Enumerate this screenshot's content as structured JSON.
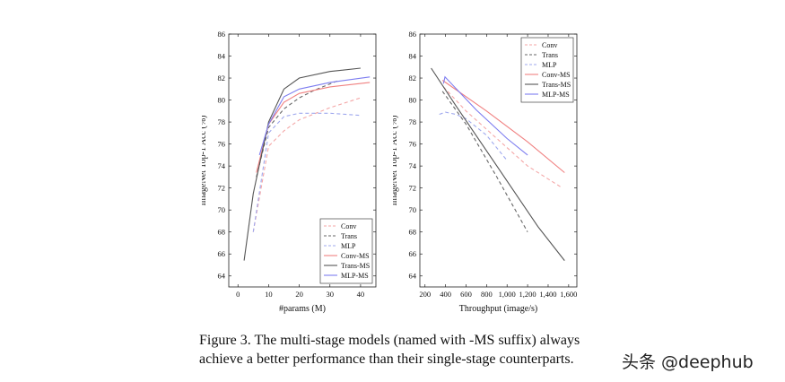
{
  "figure": {
    "caption_line1": "Figure 3. The multi-stage models (named with -MS suffix) always",
    "caption_line2": "achieve a better performance than their single-stage counterparts.",
    "watermark": "头条 @deephub"
  },
  "chart_data": [
    {
      "type": "line",
      "xlabel": "#params (M)",
      "ylabel": "ImageNet Top-1 Acc (%)",
      "xlim": [
        -3,
        45
      ],
      "ylim": [
        63,
        86
      ],
      "xticks": [
        0,
        10,
        20,
        30,
        40
      ],
      "xtick_labels": [
        "0",
        "10",
        "20",
        "30",
        "40"
      ],
      "yticks": [
        64,
        66,
        68,
        70,
        72,
        74,
        76,
        78,
        80,
        82,
        84,
        86
      ],
      "grid": false,
      "legend_position": "bottom-right",
      "series": [
        {
          "name": "Conv",
          "color": "#f4a6a6",
          "dash": "4 3",
          "x": [
            5,
            10,
            15,
            20,
            30,
            40
          ],
          "y": [
            68.0,
            75.8,
            77.2,
            78.2,
            79.3,
            80.2
          ]
        },
        {
          "name": "Trans",
          "color": "#666666",
          "dash": "4 3",
          "x": [
            6,
            10,
            15,
            20,
            25,
            33
          ],
          "y": [
            73.0,
            77.5,
            79.2,
            80.2,
            80.9,
            81.8
          ]
        },
        {
          "name": "MLP",
          "color": "#9fa8ee",
          "dash": "4 3",
          "x": [
            5,
            10,
            15,
            20,
            30,
            40
          ],
          "y": [
            68.0,
            77.0,
            78.5,
            78.8,
            78.8,
            78.6
          ]
        },
        {
          "name": "Conv-MS",
          "color": "#f08080",
          "dash": "",
          "x": [
            6,
            10,
            15,
            20,
            30,
            43
          ],
          "y": [
            73.4,
            77.8,
            79.8,
            80.6,
            81.2,
            81.6
          ]
        },
        {
          "name": "Trans-MS",
          "color": "#555555",
          "dash": "",
          "x": [
            2,
            5,
            10,
            15,
            20,
            30,
            40
          ],
          "y": [
            65.4,
            71.5,
            78.0,
            81.0,
            82.0,
            82.6,
            82.9
          ]
        },
        {
          "name": "MLP-MS",
          "color": "#7d7df0",
          "dash": "",
          "x": [
            7,
            10,
            15,
            20,
            30,
            43
          ],
          "y": [
            75.0,
            77.8,
            80.3,
            81.0,
            81.6,
            82.1
          ]
        }
      ]
    },
    {
      "type": "line",
      "xlabel": "Throughput (image/s)",
      "ylabel": "ImageNet Top-1 Acc (%)",
      "xlim": [
        150,
        1680
      ],
      "ylim": [
        63,
        86
      ],
      "xticks": [
        200,
        400,
        600,
        800,
        1000,
        1200,
        1400,
        1600
      ],
      "xtick_labels": [
        "200",
        "400",
        "600",
        "800",
        "1,000",
        "1,200",
        "1,400",
        "1,600"
      ],
      "yticks": [
        64,
        66,
        68,
        70,
        72,
        74,
        76,
        78,
        80,
        82,
        84,
        86
      ],
      "grid": false,
      "legend_position": "top-right",
      "series": [
        {
          "name": "Conv",
          "color": "#f4a6a6",
          "dash": "4 3",
          "x": [
            380,
            600,
            900,
            1200,
            1540
          ],
          "y": [
            81.2,
            79.0,
            76.5,
            74.0,
            72.0
          ]
        },
        {
          "name": "Trans",
          "color": "#666666",
          "dash": "4 3",
          "x": [
            370,
            600,
            900,
            1200
          ],
          "y": [
            80.8,
            77.8,
            73.0,
            68.0
          ]
        },
        {
          "name": "MLP",
          "color": "#9fa8ee",
          "dash": "4 3",
          "x": [
            340,
            400,
            500,
            600,
            800,
            1000
          ],
          "y": [
            78.7,
            78.9,
            78.7,
            78.3,
            76.8,
            74.5
          ]
        },
        {
          "name": "Conv-MS",
          "color": "#f08080",
          "dash": "",
          "x": [
            370,
            800,
            1200,
            1560
          ],
          "y": [
            81.8,
            79.0,
            76.2,
            73.4
          ]
        },
        {
          "name": "Trans-MS",
          "color": "#555555",
          "dash": "",
          "x": [
            260,
            500,
            900,
            1300,
            1560
          ],
          "y": [
            82.9,
            79.5,
            74.0,
            68.5,
            65.4
          ]
        },
        {
          "name": "MLP-MS",
          "color": "#7d7df0",
          "dash": "",
          "x": [
            380,
            395,
            700,
            1000,
            1200
          ],
          "y": [
            81.5,
            82.1,
            79.1,
            76.5,
            75.0
          ]
        }
      ]
    }
  ]
}
